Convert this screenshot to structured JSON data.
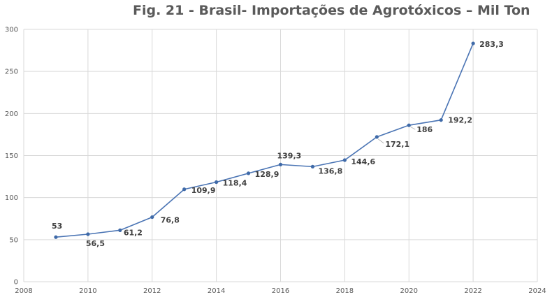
{
  "chart_data": {
    "type": "scatter",
    "mode": "lines+markers",
    "title": "Fig. 21 - Brasil- Importações de Agrotóxicos – Mil Ton",
    "x": [
      2009,
      2010,
      2011,
      2012,
      2013,
      2014,
      2015,
      2016,
      2017,
      2018,
      2019,
      2020,
      2021,
      2022
    ],
    "y": [
      53,
      56.5,
      61.2,
      76.8,
      109.9,
      118.4,
      128.9,
      139.3,
      136.8,
      144.6,
      172.1,
      186,
      192.2,
      283.3
    ],
    "data_labels": [
      "53",
      "56,5",
      "61,2",
      "76,8",
      "109,9",
      "118,4",
      "128,9",
      "139,3",
      "136,8",
      "144,6",
      "172,1",
      "186",
      "192,2",
      "283,3"
    ],
    "xlim": [
      2008,
      2024
    ],
    "ylim": [
      0,
      300
    ],
    "x_ticks": [
      "2008",
      "2010",
      "2012",
      "2014",
      "2016",
      "2018",
      "2020",
      "2022",
      "2024"
    ],
    "y_ticks": [
      "0",
      "50",
      "100",
      "150",
      "200",
      "250",
      "300"
    ],
    "xlabel": "",
    "ylabel": "",
    "grid": true,
    "legend": "none",
    "colors": {
      "line": "#4a74b4",
      "marker": "#3f6aa8",
      "grid": "#d9d9d9",
      "leader": "#a6a6a6"
    }
  }
}
